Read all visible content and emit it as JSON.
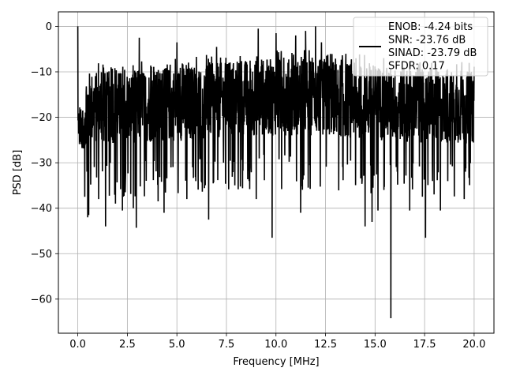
{
  "chart_data": {
    "type": "line",
    "xlabel": "Frequency [MHz]",
    "ylabel": "PSD [dB]",
    "xlim": [
      -0.98,
      21.0
    ],
    "ylim": [
      -67.5,
      3.2
    ],
    "xticks": [
      0.0,
      2.5,
      5.0,
      7.5,
      10.0,
      12.5,
      15.0,
      17.5,
      20.0
    ],
    "xtick_labels": [
      "0.0",
      "2.5",
      "5.0",
      "7.5",
      "10.0",
      "12.5",
      "15.0",
      "17.5",
      "20.0"
    ],
    "yticks": [
      0,
      -10,
      -20,
      -30,
      -40,
      -50,
      -60
    ],
    "ytick_labels": [
      "0",
      "−10",
      "−20",
      "−30",
      "−40",
      "−50",
      "−60"
    ],
    "grid": true,
    "legend_position": "upper-right",
    "line_color": "#000000",
    "series": [
      {
        "name": "ENOB: -4.24 bits\nSNR: -23.76 dB\nSINAD: -23.79 dB\nSFDR: 0.17",
        "x_start": 0.0,
        "x_end": 20.0,
        "band_start_db": -27,
        "band_upper_db": -10,
        "band_lower_db": -26,
        "noise_level_db": -18,
        "spikes": [
          {
            "x": 0.0,
            "y": 0.0
          },
          {
            "x": 0.05,
            "y": -22
          },
          {
            "x": 0.35,
            "y": -37.5
          },
          {
            "x": 0.5,
            "y": -42
          },
          {
            "x": 0.55,
            "y": -41.5
          },
          {
            "x": 1.05,
            "y": -38
          },
          {
            "x": 1.4,
            "y": -44
          },
          {
            "x": 1.9,
            "y": -39
          },
          {
            "x": 2.25,
            "y": -40.5
          },
          {
            "x": 2.8,
            "y": -40
          },
          {
            "x": 2.95,
            "y": -44.3
          },
          {
            "x": 3.1,
            "y": -2.5
          },
          {
            "x": 4.05,
            "y": -38.5
          },
          {
            "x": 4.35,
            "y": -41
          },
          {
            "x": 5.5,
            "y": -38
          },
          {
            "x": 6.6,
            "y": -42.5
          },
          {
            "x": 9.0,
            "y": -38
          },
          {
            "x": 9.8,
            "y": -46.5
          },
          {
            "x": 11.25,
            "y": -41
          },
          {
            "x": 12.0,
            "y": 0.0
          },
          {
            "x": 14.5,
            "y": -44
          },
          {
            "x": 14.85,
            "y": -43
          },
          {
            "x": 15.15,
            "y": -40.5
          },
          {
            "x": 15.8,
            "y": -64.2
          },
          {
            "x": 16.75,
            "y": -40.5
          },
          {
            "x": 17.55,
            "y": -46.5
          },
          {
            "x": 18.3,
            "y": -40.5
          },
          {
            "x": 19.5,
            "y": -38
          }
        ],
        "peaks": [
          {
            "x": 9.1,
            "y": -0.5
          },
          {
            "x": 10.0,
            "y": -1.5
          },
          {
            "x": 11.0,
            "y": -2
          },
          {
            "x": 11.5,
            "y": -1
          },
          {
            "x": 12.3,
            "y": -3.5
          },
          {
            "x": 5.0,
            "y": -3.5
          },
          {
            "x": 7.0,
            "y": -4.5
          }
        ]
      }
    ]
  }
}
